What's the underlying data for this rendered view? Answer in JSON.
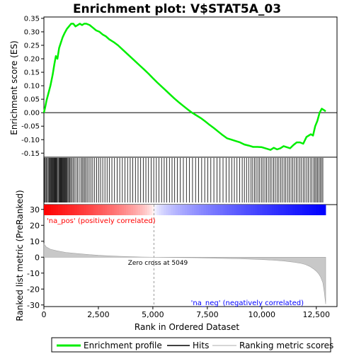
{
  "chart_data": {
    "type": "line",
    "title": "Enrichment plot: V$STAT5A_03",
    "xlabel": "Rank in Ordered Dataset",
    "es_panel": {
      "ylabel": "Enrichment score (ES)",
      "ylim": [
        -0.165,
        0.355
      ],
      "yticks": [
        "0.35",
        "0.30",
        "0.25",
        "0.20",
        "0.15",
        "0.10",
        "0.05",
        "0.00",
        "-0.05",
        "-0.10",
        "-0.15"
      ],
      "ytick_values": [
        0.35,
        0.3,
        0.25,
        0.2,
        0.15,
        0.1,
        0.05,
        0.0,
        -0.05,
        -0.1,
        -0.15
      ],
      "series_color": "#00ee00",
      "x": [
        0,
        60,
        120,
        200,
        300,
        400,
        480,
        550,
        620,
        700,
        780,
        860,
        950,
        1050,
        1150,
        1250,
        1350,
        1450,
        1550,
        1650,
        1750,
        1850,
        1950,
        2100,
        2250,
        2400,
        2550,
        2700,
        2850,
        3000,
        3200,
        3400,
        3600,
        3800,
        4000,
        4200,
        4400,
        4600,
        4800,
        5000,
        5200,
        5400,
        5600,
        5800,
        6000,
        6200,
        6400,
        6600,
        6800,
        7000,
        7200,
        7400,
        7600,
        7800,
        8000,
        8200,
        8400,
        8600,
        8800,
        9000,
        9200,
        9400,
        9600,
        9800,
        10000,
        10200,
        10400,
        10550,
        10700,
        10850,
        11000,
        11150,
        11300,
        11450,
        11600,
        11750,
        11900,
        12050,
        12150,
        12250,
        12350,
        12450,
        12550,
        12650,
        12750,
        12850,
        12930
      ],
      "es": [
        0.0,
        0.02,
        0.045,
        0.07,
        0.1,
        0.14,
        0.18,
        0.21,
        0.2,
        0.24,
        0.26,
        0.28,
        0.295,
        0.31,
        0.32,
        0.33,
        0.33,
        0.32,
        0.325,
        0.33,
        0.325,
        0.33,
        0.33,
        0.325,
        0.315,
        0.305,
        0.3,
        0.29,
        0.283,
        0.272,
        0.262,
        0.25,
        0.235,
        0.22,
        0.205,
        0.19,
        0.175,
        0.16,
        0.145,
        0.128,
        0.112,
        0.097,
        0.082,
        0.067,
        0.052,
        0.038,
        0.025,
        0.012,
        0.0,
        -0.01,
        -0.02,
        -0.032,
        -0.045,
        -0.057,
        -0.07,
        -0.083,
        -0.095,
        -0.1,
        -0.105,
        -0.11,
        -0.118,
        -0.122,
        -0.127,
        -0.127,
        -0.128,
        -0.133,
        -0.138,
        -0.13,
        -0.136,
        -0.132,
        -0.124,
        -0.128,
        -0.132,
        -0.12,
        -0.11,
        -0.11,
        -0.115,
        -0.09,
        -0.085,
        -0.08,
        -0.085,
        -0.05,
        -0.03,
        0.0,
        0.015,
        0.01,
        0.005
      ]
    },
    "hits_panel": {
      "hit_ranks": [
        30,
        70,
        110,
        160,
        200,
        240,
        270,
        310,
        340,
        370,
        400,
        430,
        460,
        490,
        520,
        550,
        580,
        610,
        650,
        690,
        720,
        750,
        780,
        810,
        840,
        870,
        900,
        930,
        960,
        990,
        1020,
        1060,
        1100,
        1140,
        1180,
        1230,
        1280,
        1340,
        1400,
        1470,
        1540,
        1620,
        1700,
        1760,
        1820,
        1880,
        1940,
        2010,
        2080,
        2160,
        2240,
        2330,
        2420,
        2510,
        2600,
        2700,
        2800,
        2900,
        3000,
        3120,
        3240,
        3360,
        3480,
        3600,
        3720,
        3840,
        3960,
        4080,
        4200,
        4320,
        4440,
        4560,
        4680,
        4800,
        4920,
        5040,
        5160,
        5280,
        5400,
        5520,
        5640,
        5760,
        5880,
        6000,
        6120,
        6260,
        6400,
        6540,
        6680,
        6820,
        6960,
        7100,
        7240,
        7380,
        7520,
        7660,
        7800,
        7940,
        8080,
        8220,
        8360,
        8500,
        8620,
        8740,
        8860,
        8980,
        9100,
        9200,
        9300,
        9400,
        9500,
        9580,
        9660,
        9740,
        9820,
        9900,
        9980,
        10060,
        10140,
        10220,
        10300,
        10380,
        10460,
        10540,
        10620,
        10700,
        10780,
        10860,
        10940,
        11020,
        11100,
        11180,
        11260,
        11340,
        11420,
        11500,
        11580,
        11660,
        11740,
        11820,
        11900,
        11980,
        12060,
        12140,
        12220,
        12300,
        12380,
        12440,
        12500,
        12560,
        12620,
        12680,
        12740,
        12800
      ]
    },
    "metric_panel": {
      "ylabel": "Ranked list metric (PreRanked)",
      "ylim": [
        -31,
        33
      ],
      "yticks": [
        "30",
        "20",
        "10",
        "0",
        "-10",
        "-20",
        "-30"
      ],
      "ytick_values": [
        30,
        20,
        10,
        0,
        -10,
        -20,
        -30
      ],
      "x": [
        0,
        100,
        300,
        600,
        1000,
        1500,
        2000,
        2500,
        3000,
        3500,
        4000,
        4500,
        5049,
        6000,
        7000,
        8000,
        9000,
        10000,
        10500,
        11000,
        11500,
        11800,
        12000,
        12200,
        12400,
        12500,
        12600,
        12700,
        12800,
        12870,
        12930
      ],
      "y": [
        8.5,
        6.5,
        5.0,
        4.0,
        3.0,
        2.3,
        1.7,
        1.2,
        0.8,
        0.5,
        0.3,
        0.1,
        0.0,
        -0.2,
        -0.4,
        -0.7,
        -1.0,
        -1.5,
        -1.9,
        -2.4,
        -3.2,
        -3.9,
        -4.6,
        -5.8,
        -7.6,
        -8.8,
        -10.3,
        -12.5,
        -16.0,
        -22.0,
        -29.5
      ],
      "zero_cross_label": "Zero cross at 5049",
      "zero_cross_rank": 5049,
      "pos_label": "'na_pos' (positively correlated)",
      "neg_label": "'na_neg' (negatively correlated)"
    },
    "xlim": [
      0,
      13450
    ],
    "xticks": [
      "0",
      "2,500",
      "5,000",
      "7,500",
      "10,000",
      "12,500"
    ],
    "xtick_values": [
      0,
      2500,
      5000,
      7500,
      10000,
      12500
    ],
    "n_genes": 12930,
    "legend": {
      "placement": "bottom",
      "entries": [
        "Enrichment profile",
        "Hits",
        "Ranking metric scores"
      ]
    },
    "colors": {
      "es_line": "#00ee00",
      "hits": "#000000",
      "metric_fill": "#c8c8c8",
      "pos_label": "#ff0000",
      "neg_label": "#0000ff"
    }
  }
}
